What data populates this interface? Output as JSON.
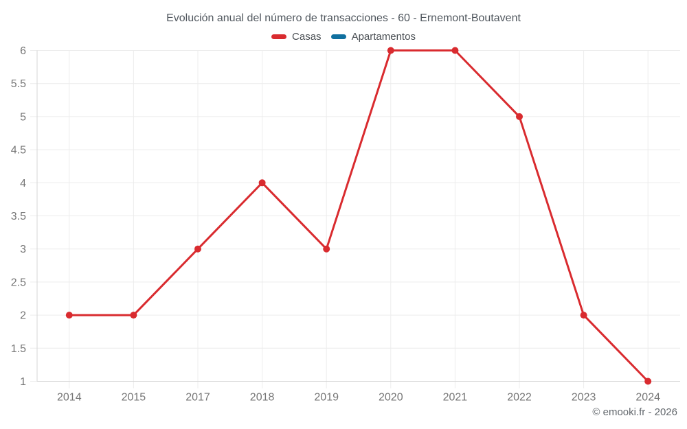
{
  "chart_data": {
    "type": "line",
    "title": "Evolución anual del número de transacciones - 60 - Ernemont-Boutavent",
    "categories": [
      "2014",
      "2015",
      "2017",
      "2018",
      "2019",
      "2020",
      "2021",
      "2022",
      "2023",
      "2024"
    ],
    "series": [
      {
        "name": "Casas",
        "color": "#d92b2f",
        "values": [
          2,
          2,
          3,
          4,
          3,
          6,
          6,
          5,
          2,
          1
        ]
      },
      {
        "name": "Apartamentos",
        "color": "#10709f",
        "values": []
      }
    ],
    "xlabel": "",
    "ylabel": "",
    "ylim": [
      1,
      6
    ],
    "yticks": [
      1,
      1.5,
      2,
      2.5,
      3,
      3.5,
      4,
      4.5,
      5,
      5.5,
      6
    ],
    "grid": true,
    "legend_position": "top"
  },
  "footer": {
    "watermark": "© emooki.fr - 2026"
  },
  "colors": {
    "grid": "#ececec",
    "axis_border": "#d6d6d6",
    "tick_text": "#757575",
    "title_text": "#50575e",
    "legend_text": "#4a4f54",
    "watermark_text": "#63686d"
  }
}
